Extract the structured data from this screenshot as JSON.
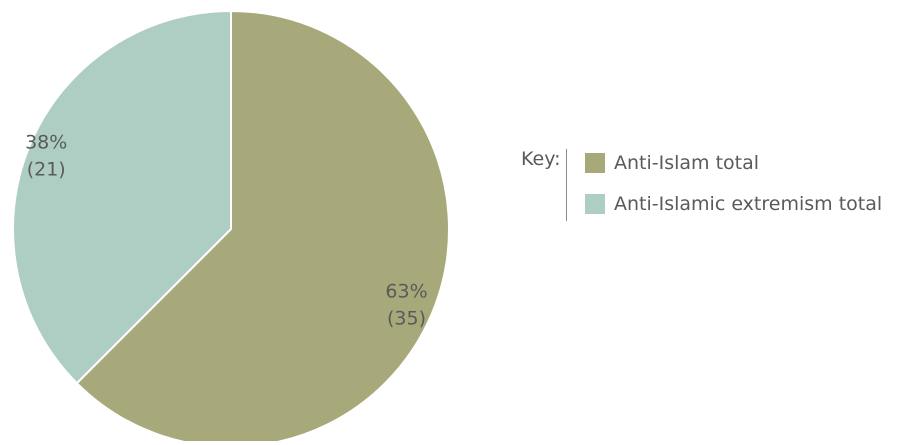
{
  "chart_data": {
    "type": "pie",
    "title": "",
    "legend_title": "Key:",
    "legend_position": "right",
    "series": [
      {
        "name": "Anti-Islam total",
        "value": 35,
        "percent_label": "63%",
        "count_label": "(35)",
        "color": "#a8a97b"
      },
      {
        "name": "Anti-Islamic extremism total",
        "value": 21,
        "percent_label": "38%",
        "count_label": "(21)",
        "color": "#afcec3"
      }
    ]
  }
}
